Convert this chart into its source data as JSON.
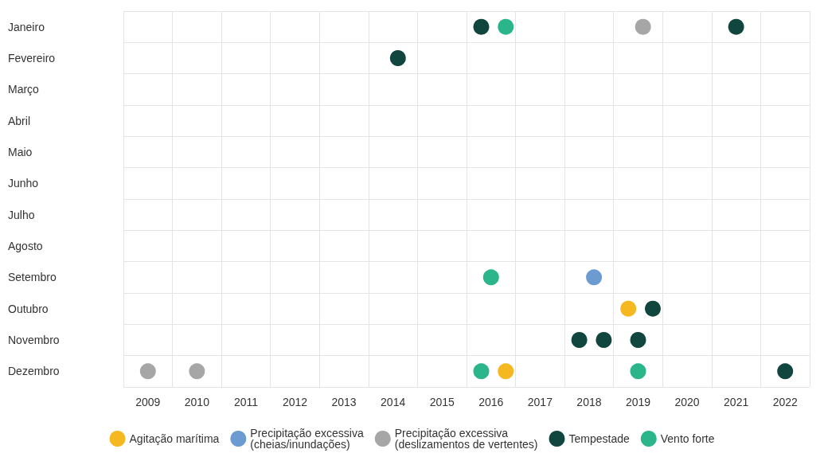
{
  "chart_data": {
    "type": "scatter",
    "orientation": "horizontal",
    "categories": [
      "Janeiro",
      "Fevereiro",
      "Março",
      "Abril",
      "Maio",
      "Junho",
      "Julho",
      "Agosto",
      "Setembro",
      "Outubro",
      "Novembro",
      "Dezembro"
    ],
    "xlim": [
      2008.5,
      2022.5
    ],
    "xticks": [
      2009,
      2010,
      2011,
      2012,
      2013,
      2014,
      2015,
      2016,
      2017,
      2018,
      2019,
      2020,
      2021,
      2022
    ],
    "grid": true,
    "legend": "bottom",
    "marker": "circle",
    "series": [
      {
        "name": "Agitação marítima",
        "color": "#f5b820",
        "x": [
          "Outubro",
          "Dezembro"
        ],
        "values": [
          2018.8,
          2016.3
        ]
      },
      {
        "name": "Precipitação excessiva\n(cheias/inundações)",
        "color": "#6b9bd1",
        "x": [
          "Setembro"
        ],
        "values": [
          2018.1
        ]
      },
      {
        "name": "Precipitação excessiva\n(deslizamentos de vertentes)",
        "color": "#a6a6a6",
        "x": [
          "Janeiro",
          "Dezembro",
          "Dezembro"
        ],
        "values": [
          2019.1,
          2009.0,
          2010.0
        ]
      },
      {
        "name": "Tempestade",
        "color": "#11463f",
        "x": [
          "Janeiro",
          "Janeiro",
          "Fevereiro",
          "Outubro",
          "Novembro",
          "Novembro",
          "Novembro",
          "Dezembro"
        ],
        "values": [
          2015.8,
          2021.0,
          2014.1,
          2019.3,
          2017.8,
          2018.3,
          2019.0,
          2022.0
        ]
      },
      {
        "name": "Vento forte",
        "color": "#2bb58a",
        "x": [
          "Janeiro",
          "Setembro",
          "Dezembro",
          "Dezembro"
        ],
        "values": [
          2016.3,
          2016.0,
          2015.8,
          2019.0
        ]
      }
    ]
  }
}
